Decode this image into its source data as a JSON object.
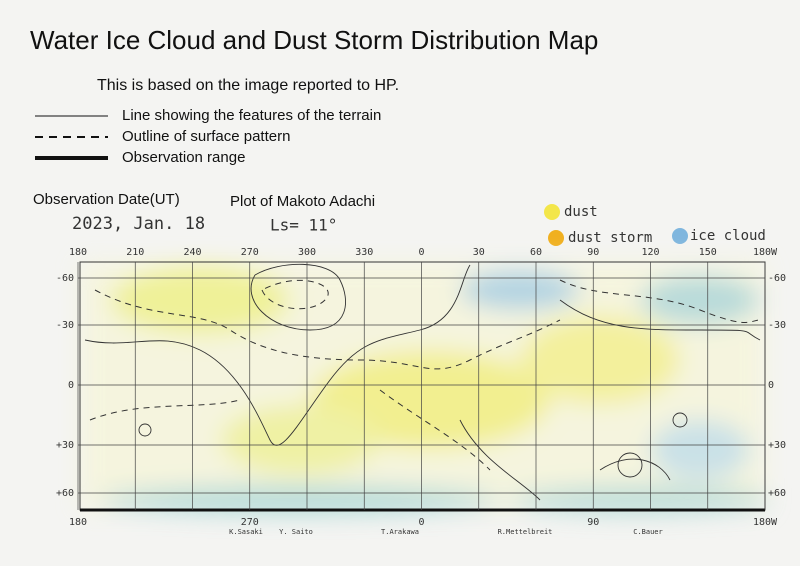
{
  "header": {
    "title": "Water Ice Cloud and Dust Storm Distribution Map",
    "subtitle": "This is based on the image reported to HP."
  },
  "legend": {
    "terrain": "Line showing the features of the terrain",
    "pattern": "Outline of surface pattern",
    "range": "Observation range"
  },
  "observation": {
    "date_label": "Observation Date(UT)",
    "date": "2023, Jan. 18",
    "plot_label": "Plot of Makoto Adachi",
    "ls": "Ls= 11°"
  },
  "key": {
    "dust": "dust",
    "dust_storm": "dust storm",
    "ice_cloud": "ice cloud"
  },
  "map": {
    "top_longitudes": [
      "180",
      "210",
      "240",
      "270",
      "300",
      "330",
      "0",
      "30",
      "60",
      "90",
      "120",
      "150",
      "180W"
    ],
    "latitudes_left": [
      "-60",
      "-30",
      "0",
      "+30",
      "+60"
    ],
    "latitudes_right": [
      "-60",
      "-30",
      "0",
      "+30",
      "+60"
    ],
    "bottom_longitudes": [
      "180",
      "270",
      "0",
      "90",
      "180W"
    ],
    "observers": [
      "K.Sasaki",
      "Y. Saito",
      "T.Arakawa",
      "R.Mettelbreit",
      "C.Bauer"
    ]
  }
}
